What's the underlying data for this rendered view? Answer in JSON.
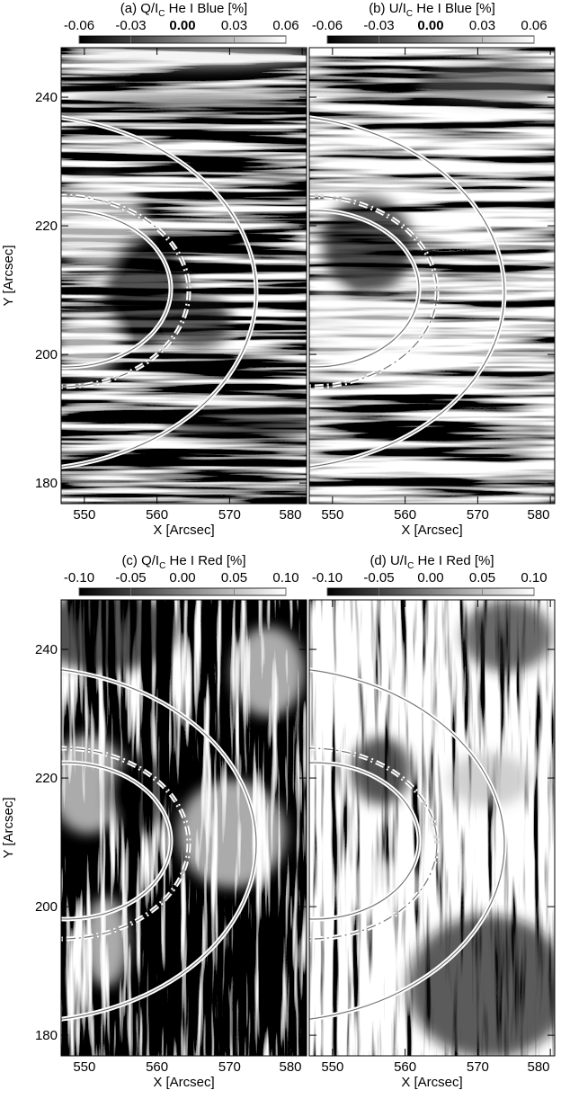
{
  "chart_data": [
    {
      "type": "image",
      "title": {
        "main": "(a) Q/I",
        "sub": "C",
        "rest": " He I Blue [%]"
      },
      "colorbar": {
        "clim": [
          -0.06,
          0.06
        ],
        "ticks": [
          -0.06,
          -0.03,
          {
            "value": 0,
            "label": "0.00"
          },
          0.03,
          0.06
        ]
      },
      "xlabel": "X [Arcsec]",
      "ylabel": "Y [Arcsec]",
      "xlim": [
        546.8,
        580.6
      ],
      "ylim": [
        176.8,
        247.7
      ],
      "xticks": [
        550,
        560,
        570,
        580
      ],
      "yticks": [
        180,
        200,
        220,
        240
      ]
    },
    {
      "type": "image",
      "title": {
        "main": "(b) U/I",
        "sub": "C",
        "rest": " He I Blue [%]"
      },
      "colorbar": {
        "clim": [
          -0.06,
          0.06
        ],
        "ticks": [
          -0.06,
          -0.03,
          {
            "value": 0,
            "label": "0.00"
          },
          0.03,
          0.06
        ]
      },
      "xlabel": "X [Arcsec]",
      "xlim": [
        546.8,
        580.6
      ],
      "ylim": [
        176.8,
        247.7
      ],
      "xticks": [
        550,
        560,
        570,
        580
      ],
      "yticks": [
        180,
        200,
        220,
        240
      ]
    },
    {
      "type": "image",
      "title": {
        "main": "(c) Q/I",
        "sub": "C",
        "rest": " He I Red [%]"
      },
      "colorbar": {
        "clim": [
          -0.1,
          0.1
        ],
        "ticks": [
          {
            "value": -0.1,
            "label": "-0.10"
          },
          -0.05,
          {
            "value": 0,
            "label": "0.00"
          },
          0.05,
          {
            "value": 0.1,
            "label": "0.10"
          }
        ]
      },
      "xlabel": "X [Arcsec]",
      "ylabel": "Y [Arcsec]",
      "xlim": [
        546.8,
        580.6
      ],
      "ylim": [
        176.8,
        247.7
      ],
      "xticks": [
        550,
        560,
        570,
        580
      ],
      "yticks": [
        180,
        200,
        220,
        240
      ]
    },
    {
      "type": "image",
      "title": {
        "main": "(d) U/I",
        "sub": "C",
        "rest": " He I Red [%]"
      },
      "colorbar": {
        "clim": [
          -0.1,
          0.1
        ],
        "ticks": [
          {
            "value": -0.1,
            "label": "-0.10"
          },
          -0.05,
          {
            "value": 0,
            "label": "0.00"
          },
          0.05,
          {
            "value": 0.1,
            "label": "0.10"
          }
        ]
      },
      "xlabel": "X [Arcsec]",
      "xlim": [
        546.8,
        580.6
      ],
      "ylim": [
        176.8,
        247.7
      ],
      "xticks": [
        550,
        560,
        570,
        580
      ],
      "yticks": [
        180,
        200,
        220,
        240
      ]
    }
  ]
}
